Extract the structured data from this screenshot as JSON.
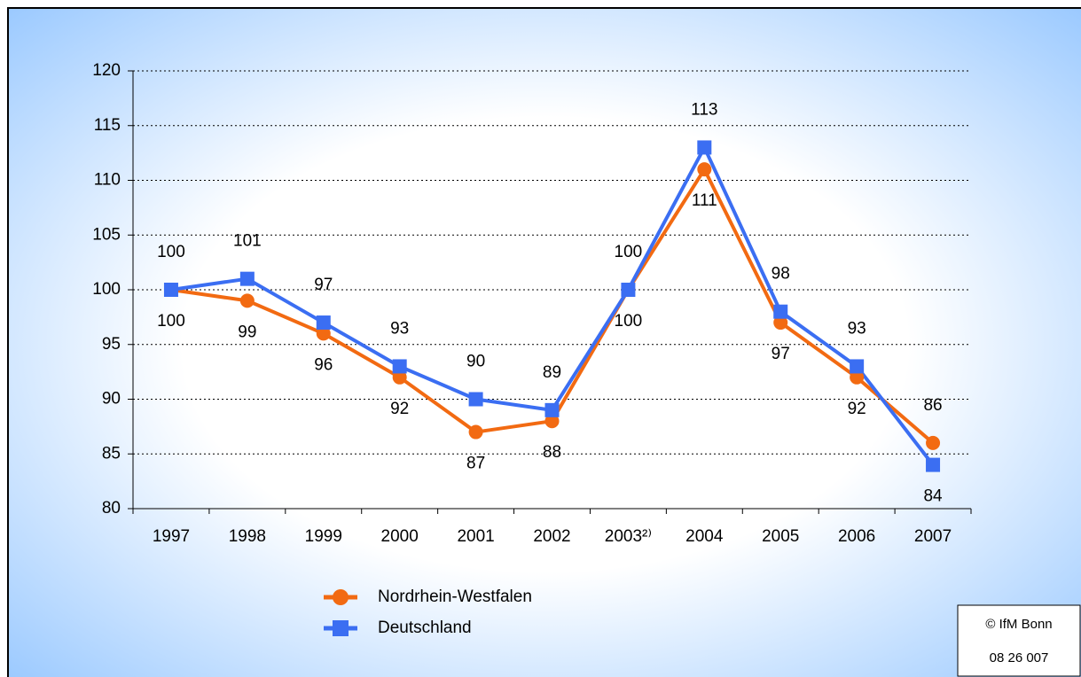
{
  "chart_data": {
    "type": "line",
    "categories": [
      "1997",
      "1998",
      "1999",
      "2000",
      "2001",
      "2002",
      "2003²⁾",
      "2004",
      "2005",
      "2006",
      "2007"
    ],
    "series": [
      {
        "name": "Nordrhein-Westfalen",
        "color": "#f26a12",
        "marker": "circle",
        "values": [
          100,
          99,
          96,
          92,
          87,
          88,
          100,
          111,
          97,
          92,
          86
        ]
      },
      {
        "name": "Deutschland",
        "color": "#3b6ef2",
        "marker": "square",
        "values": [
          100,
          101,
          97,
          93,
          90,
          89,
          100,
          113,
          98,
          93,
          84
        ]
      }
    ],
    "ylim": [
      80,
      120
    ],
    "yticks": [
      80,
      85,
      90,
      95,
      100,
      105,
      110,
      115,
      120
    ],
    "grid": true,
    "source": [
      "© IfM Bonn",
      "08 26 007"
    ]
  }
}
